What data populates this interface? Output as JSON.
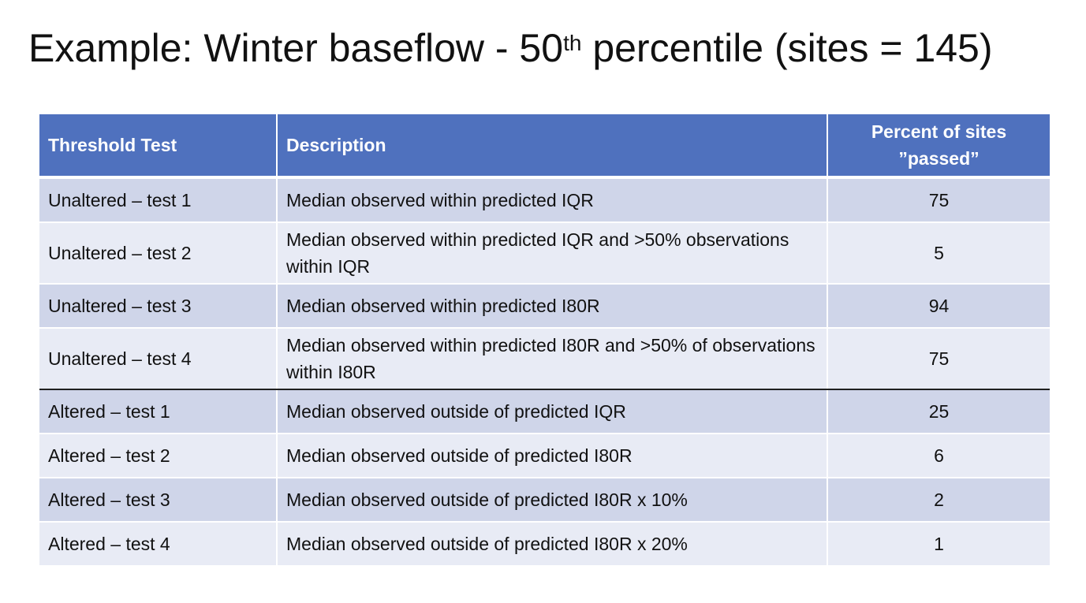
{
  "title": {
    "main": "Example: Winter baseflow - 50",
    "sup": "th",
    "rest": " percentile (sites = 145)"
  },
  "table": {
    "headers": {
      "test": "Threshold Test",
      "description": "Description",
      "percent": "Percent of sites ”passed”"
    },
    "rows": [
      {
        "test": "Unaltered – test 1",
        "description": "Median observed within predicted IQR",
        "percent": "75"
      },
      {
        "test": "Unaltered – test 2",
        "description": "Median observed within predicted IQR and >50% observations within IQR",
        "percent": "5"
      },
      {
        "test": "Unaltered – test 3",
        "description": "Median observed within predicted I80R",
        "percent": "94"
      },
      {
        "test": "Unaltered – test 4",
        "description": "Median observed within predicted I80R and >50% of observations within I80R",
        "percent": "75"
      },
      {
        "test": "Altered – test 1",
        "description": "Median observed outside of predicted IQR",
        "percent": "25"
      },
      {
        "test": "Altered – test 2",
        "description": "Median observed outside of predicted I80R",
        "percent": "6"
      },
      {
        "test": "Altered – test 3",
        "description": "Median observed outside of predicted I80R x 10%",
        "percent": "2"
      },
      {
        "test": "Altered – test 4",
        "description": "Median observed outside of predicted I80R x 20%",
        "percent": "1"
      }
    ]
  },
  "colors": {
    "header_bg": "#4f71be",
    "row_dark": "#cfd5e9",
    "row_light": "#e8ebf5"
  }
}
